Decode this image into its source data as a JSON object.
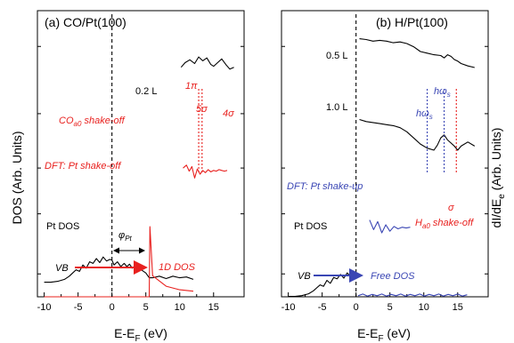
{
  "colors": {
    "black": "#000000",
    "red": "#e8201e",
    "blue": "#3a46b4"
  },
  "ylabel_left": "DOS (Arb. Units)",
  "ylabel_right": "dI/dE",
  "ylabel_right_sub": "e",
  "ylabel_right_tail": " (Arb. Units)",
  "chart_data": [
    {
      "type": "line",
      "title": "(a) CO/Pt(100)",
      "xlabel": "E-E",
      "xlabel_sub": "F",
      "xlabel_tail": " (eV)",
      "xlim": [
        -11,
        19.5
      ],
      "ylim": [
        0,
        100
      ],
      "xticks": [
        -10,
        -5,
        0,
        5,
        10,
        15
      ],
      "series": [
        {
          "label": "0.2 L",
          "color": "#000000",
          "x": [
            10.2,
            10.8,
            11.5,
            12.2,
            12.8,
            13.4,
            14.0,
            14.6,
            15.0,
            15.6,
            16.2,
            16.8,
            17.4,
            18.0
          ],
          "y": [
            66,
            71,
            74,
            70,
            77,
            73,
            76,
            69,
            67,
            71,
            75,
            69,
            64,
            66
          ]
        },
        {
          "label": "DFT: Pt shake-off",
          "color": "#e8201e",
          "x": [
            10.5,
            11.0,
            11.4,
            11.8,
            12.2,
            12.6,
            13.0,
            13.4,
            13.8,
            14.2,
            14.6,
            15.0,
            15.4,
            15.8,
            16.2,
            16.6,
            17.0
          ],
          "y": [
            48,
            52,
            44,
            50,
            35,
            47,
            40,
            45,
            42,
            46,
            43,
            45,
            44,
            46,
            45,
            44,
            45
          ]
        },
        {
          "label": "Pt DOS",
          "color": "#000000",
          "x": [
            -10.0,
            -9.0,
            -8.0,
            -7.0,
            -6.3,
            -5.8,
            -5.3,
            -4.8,
            -4.3,
            -3.8,
            -3.3,
            -2.8,
            -2.3,
            -1.8,
            -1.3,
            -0.8,
            -0.3,
            0.0,
            0.3,
            0.8,
            1.3,
            1.8,
            2.2,
            2.6,
            3.0,
            3.4,
            3.8,
            4.3,
            5.0,
            5.5,
            6.0,
            7.0,
            8.0,
            9.0,
            10.0,
            11.0,
            12.0
          ],
          "y": [
            0.5,
            0.5,
            1.5,
            4,
            8,
            12,
            16,
            14,
            22,
            18,
            26,
            24,
            30,
            25,
            32,
            27,
            29,
            28,
            22,
            26,
            20,
            24,
            20,
            23,
            18,
            21,
            19,
            16,
            12,
            6,
            6,
            8,
            5,
            8,
            6,
            7,
            4
          ]
        },
        {
          "label": "1D DOS",
          "color": "#e8201e",
          "x": [
            -10.0,
            5.5,
            5.6,
            6.0,
            8.0,
            10.0,
            12.0
          ],
          "y": [
            0,
            0,
            100,
            30,
            15,
            10,
            8
          ]
        }
      ],
      "markers": [
        {
          "x": 0,
          "style": "dashed",
          "color": "#000000"
        },
        {
          "x": 12.8,
          "style": "dotted",
          "color": "#e8201e",
          "label": "1π"
        },
        {
          "x": 13.3,
          "style": "dotted",
          "color": "#e8201e",
          "label": "5σ"
        }
      ],
      "annotations": [
        "0.2 L",
        "CO",
        "a0",
        " shake-off",
        "DFT: Pt shake-off",
        "Pt DOS",
        "φ",
        "Pt",
        "VB",
        "1D DOS",
        "1π",
        "5σ",
        "4σ"
      ]
    },
    {
      "type": "line",
      "title": "(b) H/Pt(100)",
      "xlabel": "E-E",
      "xlabel_sub": "F",
      "xlabel_tail": " (eV)",
      "xlim": [
        -11,
        19.5
      ],
      "ylim": [
        0,
        100
      ],
      "xticks": [
        -10,
        -5,
        0,
        5,
        10,
        15
      ],
      "series": [
        {
          "label": "0.5 L",
          "color": "#000000",
          "x": [
            0.5,
            1.5,
            2.5,
            3.5,
            4.5,
            5.5,
            6.5,
            7.5,
            8.5,
            9.5,
            10.5,
            11.5,
            12.5,
            13.0,
            13.5,
            14.0,
            14.5,
            15.0,
            15.5,
            16.5,
            17.5
          ],
          "y": [
            96,
            95,
            93,
            94,
            93,
            91,
            92,
            90,
            86,
            80,
            78,
            76,
            75,
            72,
            76,
            74,
            70,
            68,
            65,
            62,
            60
          ]
        },
        {
          "label": "1.0 L",
          "color": "#000000",
          "x": [
            0.5,
            1.5,
            2.5,
            3.5,
            4.5,
            5.5,
            6.5,
            7.5,
            8.5,
            9.5,
            10.5,
            11.5,
            12.0,
            12.5,
            13.0,
            13.5,
            14.0,
            14.5,
            15.0,
            15.5,
            16.5,
            17.5
          ],
          "y": [
            70,
            68,
            67,
            66,
            65,
            64,
            62,
            58,
            52,
            46,
            42,
            40,
            45,
            52,
            55,
            50,
            47,
            44,
            40,
            44,
            48,
            44
          ]
        },
        {
          "label": "DFT: Pt shake-up",
          "color": "#3a46b4",
          "x": [
            2.0,
            2.6,
            3.2,
            3.8,
            4.4,
            5.0,
            5.6,
            6.2,
            6.8,
            7.4,
            8.0
          ],
          "y": [
            36,
            24,
            34,
            20,
            30,
            22,
            28,
            25,
            27,
            26,
            27
          ]
        },
        {
          "label": "Pt DOS",
          "color": "#000000",
          "x": [
            -10.0,
            -9.0,
            -8.0,
            -7.0,
            -6.3,
            -5.8,
            -5.3,
            -4.8,
            -4.3,
            -3.8,
            -3.3,
            -2.8,
            -2.3,
            -1.8,
            -1.3,
            -0.8,
            -0.3,
            0.0
          ],
          "y": [
            0.5,
            0.5,
            1.5,
            4,
            8,
            12,
            16,
            14,
            22,
            18,
            26,
            24,
            30,
            25,
            32,
            27,
            29,
            28
          ]
        },
        {
          "label": "Free DOS",
          "color": "#3a46b4",
          "x": [
            0.3,
            1.0,
            1.7,
            2.4,
            3.1,
            3.8,
            4.5,
            5.2,
            5.9,
            6.6,
            7.3,
            8.0,
            8.7,
            9.4,
            10.1,
            10.8,
            11.5,
            12.2,
            12.9,
            13.6,
            14.3,
            15.0,
            15.7,
            16.4
          ],
          "y": [
            3,
            8,
            2,
            7,
            3,
            8,
            2,
            7,
            3,
            8,
            2,
            7,
            3,
            8,
            2,
            7,
            3,
            8,
            2,
            7,
            3,
            8,
            2,
            6
          ]
        }
      ],
      "markers": [
        {
          "x": 0,
          "style": "dashed",
          "color": "#000000"
        },
        {
          "x": 10.5,
          "style": "dotted",
          "color": "#3a46b4",
          "label": "ħω"
        },
        {
          "x": 13.0,
          "style": "dotted",
          "color": "#3a46b4",
          "label": "ħω"
        },
        {
          "x": 14.8,
          "style": "dotted",
          "color": "#e8201e",
          "label": "σ"
        }
      ],
      "annotations": [
        "0.5 L",
        "1.0 L",
        "hω",
        "s",
        "hω",
        "s",
        "σ",
        "DFT: Pt shake-up",
        "Pt DOS",
        "H",
        "a0",
        " shake-off",
        "VB",
        "Free DOS"
      ]
    }
  ]
}
